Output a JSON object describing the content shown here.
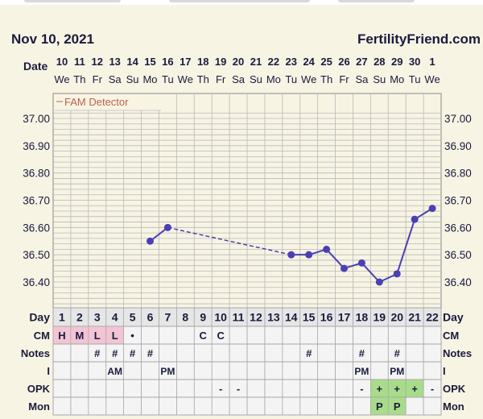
{
  "header": {
    "date": "Nov 10, 2021",
    "site": "FertilityFriend.com"
  },
  "row_labels": {
    "date": "Date",
    "day": "Day",
    "cm": "CM",
    "notes": "Notes",
    "intercourse": "I",
    "opk": "OPK",
    "mon": "Mon"
  },
  "chart_data": {
    "type": "line",
    "legend": "FAM Detector",
    "dates": [
      "10",
      "11",
      "12",
      "13",
      "14",
      "15",
      "16",
      "17",
      "18",
      "19",
      "20",
      "21",
      "22",
      "23",
      "24",
      "25",
      "26",
      "27",
      "28",
      "29",
      "30",
      "1"
    ],
    "weekdays": [
      "We",
      "Th",
      "Fr",
      "Sa",
      "Su",
      "Mo",
      "Tu",
      "We",
      "Th",
      "Fr",
      "Sa",
      "Su",
      "Mo",
      "Tu",
      "We",
      "Th",
      "Fr",
      "Sa",
      "Su",
      "Mo",
      "Tu",
      "We"
    ],
    "cycle_days": [
      "1",
      "2",
      "3",
      "4",
      "5",
      "6",
      "7",
      "8",
      "9",
      "10",
      "11",
      "12",
      "13",
      "14",
      "15",
      "16",
      "17",
      "18",
      "19",
      "20",
      "21",
      "22"
    ],
    "temperatures": [
      null,
      null,
      null,
      null,
      null,
      36.55,
      36.6,
      null,
      null,
      null,
      null,
      null,
      null,
      36.5,
      36.5,
      36.52,
      36.45,
      36.47,
      36.4,
      36.43,
      36.63,
      36.67
    ],
    "y_ticks": [
      "37.00",
      "36.90",
      "36.80",
      "36.70",
      "36.60",
      "36.50",
      "36.40"
    ],
    "ylim": [
      36.32,
      37.02
    ],
    "grid": true,
    "colors": {
      "line": "#4b3fb4",
      "point": "#4b3fb4",
      "grid": "#b9b9b9",
      "label": "#1a1a3e",
      "legend": "#c0604a",
      "cm_fill": "#f2c4d4",
      "opk_fill": "#a8dc8a"
    },
    "cm": [
      "H",
      "M",
      "L",
      "L",
      "•",
      "",
      "",
      "",
      "C",
      "C",
      "",
      "",
      "",
      "",
      "",
      "",
      "",
      "",
      "",
      "",
      "",
      ""
    ],
    "cm_highlight": [
      true,
      true,
      true,
      true,
      false,
      false,
      false,
      false,
      false,
      false,
      false,
      false,
      false,
      false,
      false,
      false,
      false,
      false,
      false,
      false,
      false,
      false
    ],
    "notes": [
      "",
      "",
      "#",
      "#",
      "#",
      "#",
      "",
      "",
      "",
      "",
      "",
      "",
      "",
      "",
      "#",
      "",
      "",
      "#",
      "",
      "#",
      "",
      ""
    ],
    "intercourse": [
      "",
      "",
      "",
      "AM",
      "",
      "",
      "PM",
      "",
      "",
      "",
      "",
      "",
      "",
      "",
      "",
      "",
      "",
      "PM",
      "",
      "PM",
      "",
      ""
    ],
    "opk": [
      "",
      "",
      "",
      "",
      "",
      "",
      "",
      "",
      "",
      "-",
      "-",
      "",
      "",
      "",
      "",
      "",
      "",
      "-",
      "+",
      "+",
      "+",
      "-"
    ],
    "opk_highlight": [
      false,
      false,
      false,
      false,
      false,
      false,
      false,
      false,
      false,
      false,
      false,
      false,
      false,
      false,
      false,
      false,
      false,
      false,
      true,
      true,
      true,
      false
    ],
    "mon": [
      "",
      "",
      "",
      "",
      "",
      "",
      "",
      "",
      "",
      "",
      "",
      "",
      "",
      "",
      "",
      "",
      "",
      "",
      "P",
      "P",
      "",
      ""
    ],
    "mon_highlight": [
      false,
      false,
      false,
      false,
      false,
      false,
      false,
      false,
      false,
      false,
      false,
      false,
      false,
      false,
      false,
      false,
      false,
      false,
      true,
      true,
      false,
      false
    ]
  }
}
